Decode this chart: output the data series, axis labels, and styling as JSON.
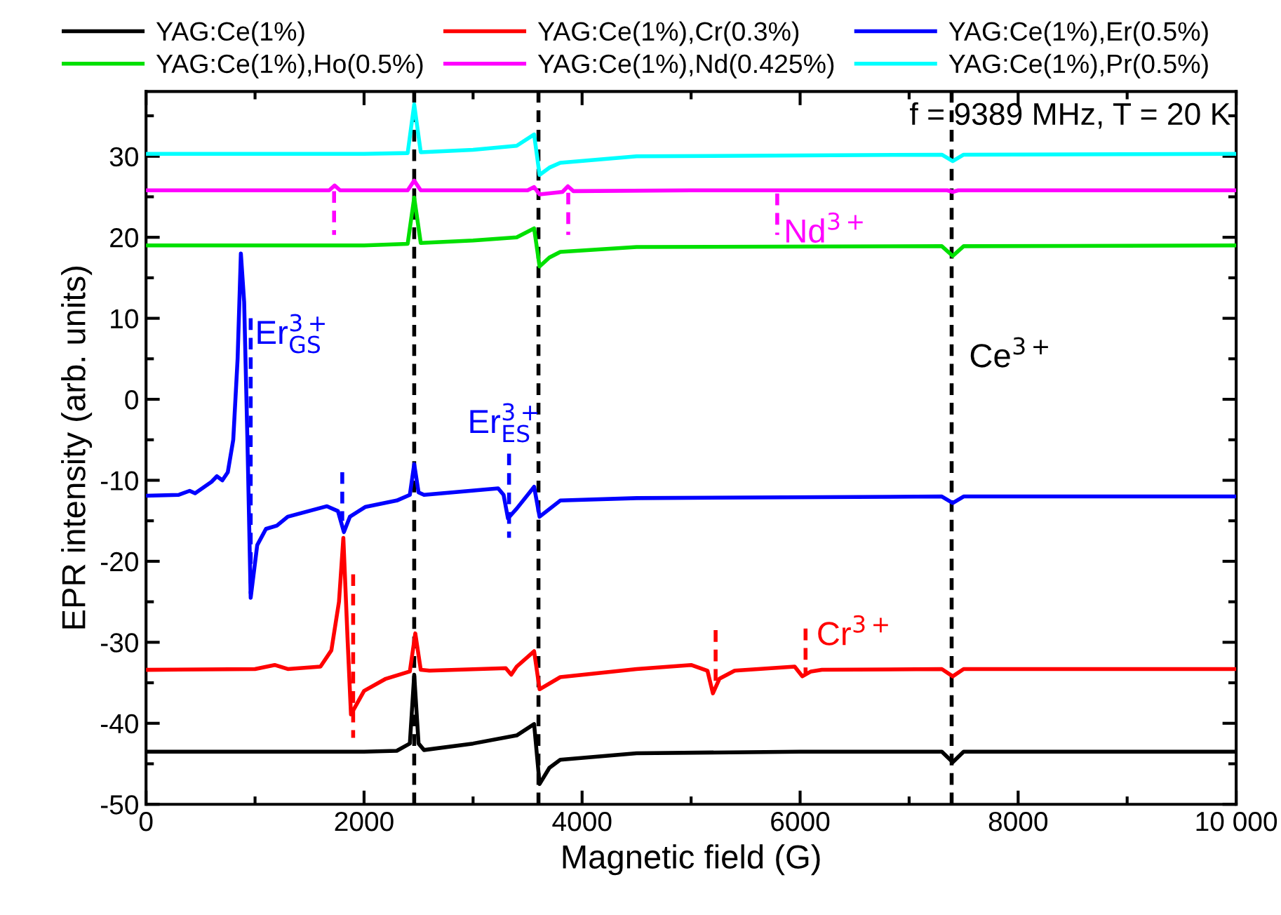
{
  "chart_data": {
    "type": "line",
    "xlabel": "Magnetic field (G)",
    "ylabel": "EPR intensity (arb. units)",
    "xlim": [
      0,
      10000
    ],
    "ylim": [
      -50,
      38
    ],
    "xticks": [
      0,
      2000,
      4000,
      6000,
      8000,
      {
        "value": 10000,
        "label": "10 000"
      }
    ],
    "yticks": [
      -50,
      -40,
      -30,
      -20,
      -10,
      0,
      10,
      20,
      30
    ],
    "grid": false,
    "legend": "top",
    "line_style": "solid",
    "marker": "none",
    "series": [
      {
        "name": "YAG:Ce(1%)",
        "color": "#000000",
        "x": [
          0,
          1000,
          2000,
          2300,
          2420,
          2460,
          2500,
          2550,
          3000,
          3400,
          3560,
          3610,
          3700,
          3800,
          4500,
          6000,
          7300,
          7400,
          7500,
          8500,
          10000
        ],
        "values": [
          -43.5,
          -43.5,
          -43.5,
          -43.4,
          -42.5,
          -34,
          -42.5,
          -43.3,
          -42.5,
          -41.5,
          -40.1,
          -47.5,
          -45.5,
          -44.5,
          -43.7,
          -43.5,
          -43.5,
          -44.8,
          -43.5,
          -43.5,
          -43.5
        ]
      },
      {
        "name": "YAG:Ce(1%),Cr(0.3%)",
        "color": "#ff0000",
        "x": [
          0,
          1000,
          1180,
          1300,
          1600,
          1700,
          1770,
          1810,
          1850,
          1880,
          2000,
          2200,
          2420,
          2470,
          2520,
          2600,
          3300,
          3350,
          3400,
          3560,
          3610,
          3800,
          4500,
          5000,
          5150,
          5200,
          5260,
          5400,
          5950,
          6020,
          6100,
          6200,
          7300,
          7400,
          7500,
          10000
        ],
        "values": [
          -33.4,
          -33.3,
          -32.8,
          -33.3,
          -33.0,
          -31,
          -25,
          -17.1,
          -30,
          -38.9,
          -36,
          -34.5,
          -33.6,
          -28.9,
          -33.4,
          -33.5,
          -33.2,
          -34,
          -33.0,
          -31.1,
          -35.8,
          -34.3,
          -33.3,
          -32.8,
          -33.5,
          -36.3,
          -34.5,
          -33.5,
          -33.0,
          -34.2,
          -33.6,
          -33.4,
          -33.3,
          -34.2,
          -33.3,
          -33.3
        ]
      },
      {
        "name": "YAG:Ce(1%),Er(0.5%)",
        "color": "#0000ff",
        "x": [
          0,
          300,
          400,
          450,
          600,
          650,
          700,
          750,
          800,
          840,
          870,
          900,
          930,
          960,
          1020,
          1100,
          1200,
          1300,
          1660,
          1760,
          1815,
          1870,
          2010,
          2300,
          2420,
          2460,
          2500,
          2550,
          3230,
          3280,
          3320,
          3400,
          3560,
          3610,
          3800,
          4500,
          7300,
          7400,
          7500,
          10000
        ],
        "values": [
          -11.9,
          -11.8,
          -11.3,
          -11.6,
          -10.2,
          -9.5,
          -10,
          -9,
          -5,
          5,
          18,
          12,
          -5,
          -24.5,
          -18,
          -16,
          -15.6,
          -14.5,
          -13.2,
          -13.8,
          -16.4,
          -14.5,
          -13.3,
          -12.5,
          -11.8,
          -8,
          -11.5,
          -11.8,
          -11.0,
          -11.8,
          -14.7,
          -13.5,
          -10.8,
          -14.5,
          -12.5,
          -12.2,
          -12.0,
          -12.8,
          -12.0,
          -12.0
        ]
      },
      {
        "name": "YAG:Ce(1%),Ho(0.5%)",
        "color": "#00e000",
        "x": [
          0,
          2000,
          2400,
          2460,
          2520,
          3000,
          3400,
          3560,
          3610,
          3700,
          3800,
          4500,
          7300,
          7400,
          7500,
          10000
        ],
        "values": [
          19,
          19,
          19.2,
          24.9,
          19.3,
          19.6,
          20,
          21.1,
          16.4,
          17.5,
          18.2,
          18.8,
          18.9,
          17.7,
          18.9,
          19
        ]
      },
      {
        "name": "YAG:Ce(1%),Nd(0.425%)",
        "color": "#ff00ff",
        "x": [
          0,
          1680,
          1730,
          1780,
          2400,
          2460,
          2520,
          3500,
          3560,
          3610,
          3820,
          3870,
          3920,
          5000,
          7350,
          7400,
          7450,
          10000
        ],
        "values": [
          25.8,
          25.8,
          26.4,
          25.8,
          25.8,
          27,
          25.8,
          25.8,
          26.2,
          25.3,
          25.6,
          26.3,
          25.7,
          25.8,
          25.8,
          25.6,
          25.8,
          25.8
        ]
      },
      {
        "name": "YAG:Ce(1%),Pr(0.5%)",
        "color": "#00ffff",
        "x": [
          0,
          2000,
          2400,
          2460,
          2520,
          3000,
          3400,
          3560,
          3610,
          3700,
          3800,
          4500,
          7300,
          7400,
          7500,
          10000
        ],
        "values": [
          30.3,
          30.3,
          30.4,
          36.4,
          30.5,
          30.8,
          31.3,
          32.7,
          27.7,
          28.6,
          29.2,
          30.0,
          30.2,
          29.4,
          30.2,
          30.3
        ]
      },
      {
        "color": "#ff00ff",
        "line_style": "dashed",
        "x": [
          1725,
          1725
        ],
        "values": [
          25.7,
          20.3
        ]
      },
      {
        "color": "#ff00ff",
        "line_style": "dashed",
        "x": [
          3873,
          3873
        ],
        "values": [
          25.5,
          20.3
        ]
      },
      {
        "color": "#ff00ff",
        "line_style": "dashed",
        "x": [
          5790,
          5790
        ],
        "values": [
          25.4,
          20.3
        ]
      },
      {
        "color": "#0000ff",
        "line_style": "dashed",
        "x": [
          960,
          960
        ],
        "values": [
          10,
          -24
        ]
      },
      {
        "color": "#0000ff",
        "line_style": "dashed",
        "x": [
          1800,
          1800
        ],
        "values": [
          -9,
          -15
        ]
      },
      {
        "color": "#0000ff",
        "line_style": "dashed",
        "x": [
          3330,
          3330
        ],
        "values": [
          -6.7,
          -17.1
        ]
      },
      {
        "color": "#ff0000",
        "line_style": "dashed",
        "x": [
          1900,
          1900
        ],
        "values": [
          -21.6,
          -41.8
        ]
      },
      {
        "color": "#ff0000",
        "line_style": "dashed",
        "x": [
          5225,
          5225
        ],
        "values": [
          -28.5,
          -35.4
        ]
      },
      {
        "color": "#ff0000",
        "line_style": "dashed",
        "x": [
          6050,
          6050
        ],
        "values": [
          -28.3,
          -34.0
        ]
      }
    ],
    "ref_lines": [
      {
        "axis": "x",
        "value": 2460,
        "color": "#000000",
        "line_style": "dashed"
      },
      {
        "axis": "x",
        "value": 3600,
        "color": "#000000",
        "line_style": "dashed"
      },
      {
        "axis": "x",
        "value": 7390,
        "color": "#000000",
        "line_style": "dashed"
      }
    ],
    "annotations": [
      "f = 9389 MHz, T = 20 K",
      "Er$^{3+}$$_{GS}$",
      "Er$^{3+}$$_{ES}$",
      "Nd$^{3+}$",
      "Cr$^{3+}$",
      "Ce$^{3+}$"
    ]
  }
}
